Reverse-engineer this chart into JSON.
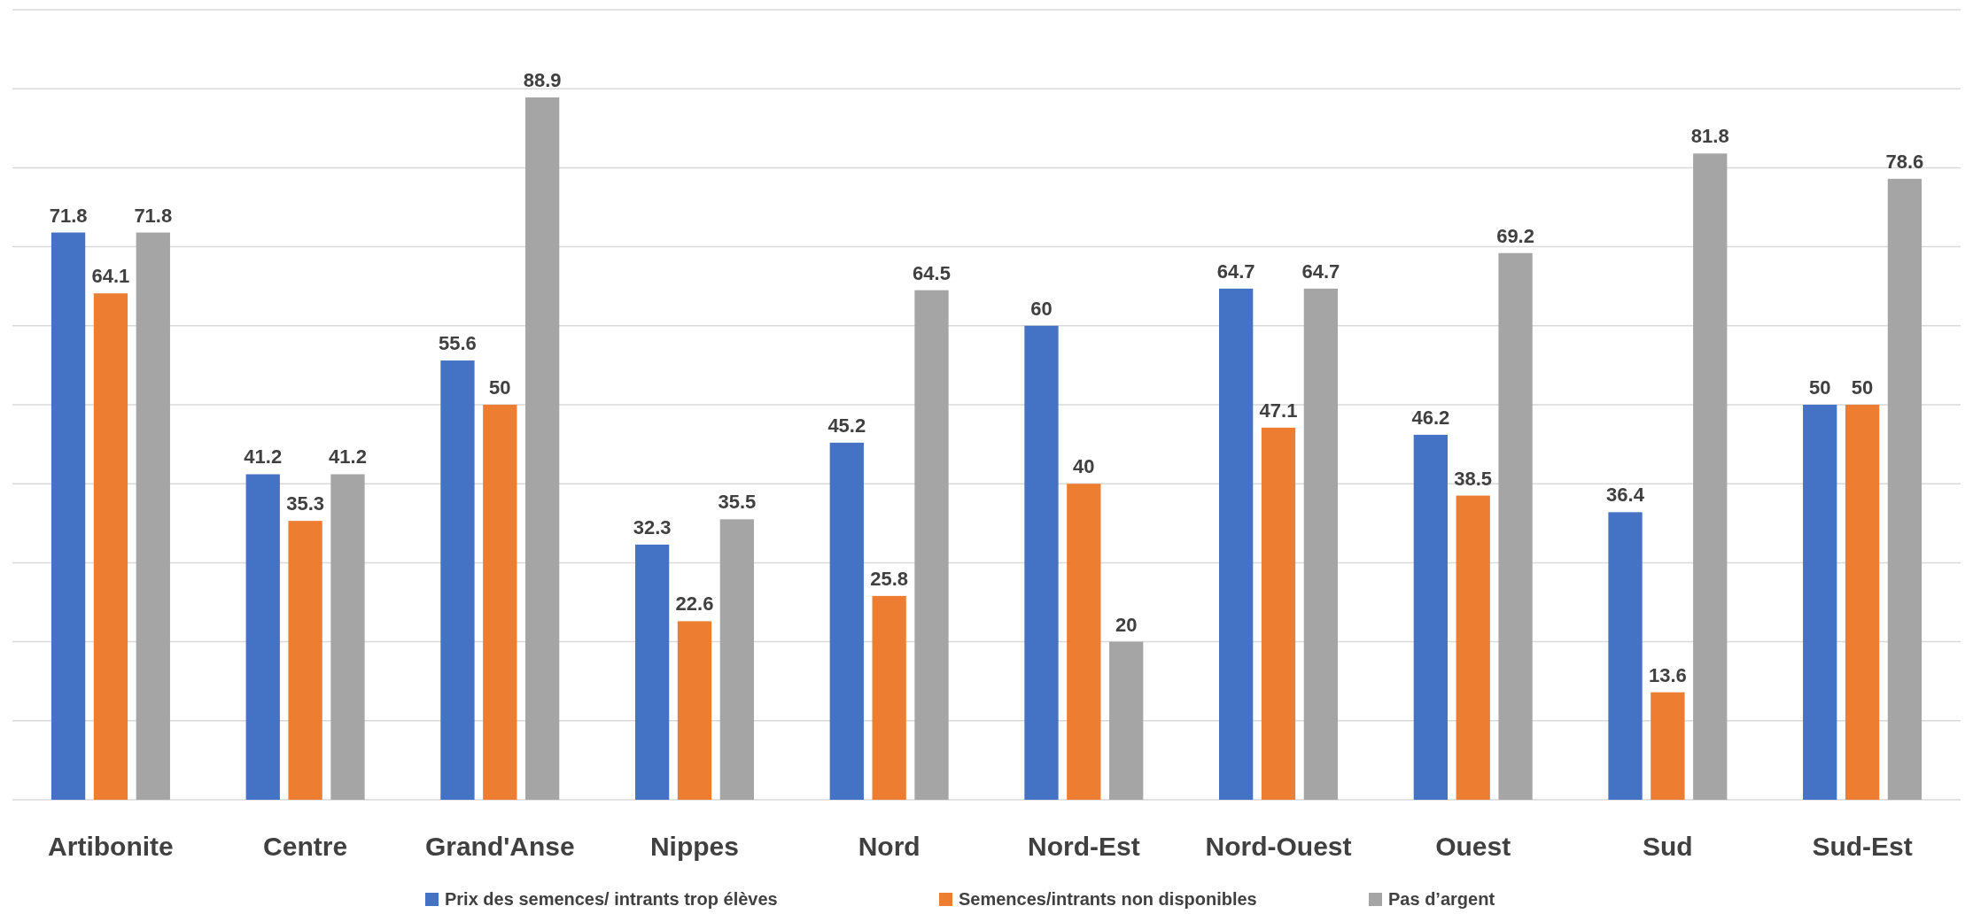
{
  "chart_data": {
    "type": "bar",
    "categories": [
      "Artibonite",
      "Centre",
      "Grand'Anse",
      "Nippes",
      "Nord",
      "Nord-Est",
      "Nord-Ouest",
      "Ouest",
      "Sud",
      "Sud-Est"
    ],
    "series": [
      {
        "name": "Prix des semences/ intrants trop élèves",
        "color": "#4472c4",
        "values": [
          71.8,
          41.2,
          55.6,
          32.3,
          45.2,
          60,
          64.7,
          46.2,
          36.4,
          50
        ]
      },
      {
        "name": "Semences/intrants non disponibles",
        "color": "#ed7d31",
        "values": [
          64.1,
          35.3,
          50,
          22.6,
          25.8,
          40,
          47.1,
          38.5,
          13.6,
          50
        ]
      },
      {
        "name": "Pas d’argent",
        "color": "#a5a5a5",
        "values": [
          71.8,
          41.2,
          88.9,
          35.5,
          64.5,
          20,
          64.7,
          69.2,
          81.8,
          78.6
        ]
      }
    ],
    "ylim": [
      0,
      100
    ],
    "yticks": [
      {
        "value": 0,
        "label": null
      },
      {
        "value": 10,
        "label": null
      },
      {
        "value": 20,
        "label": null
      },
      {
        "value": 30,
        "label": null
      },
      {
        "value": 40,
        "label": null
      },
      {
        "value": 50,
        "label": null
      },
      {
        "value": 60,
        "label": null
      },
      {
        "value": 70,
        "label": null
      },
      {
        "value": 80,
        "label": null
      },
      {
        "value": 90,
        "label": null
      },
      {
        "value": 100,
        "label": null
      }
    ],
    "tick_labels": "x",
    "grid": "y",
    "data_labels": true,
    "legend": "bottom"
  }
}
